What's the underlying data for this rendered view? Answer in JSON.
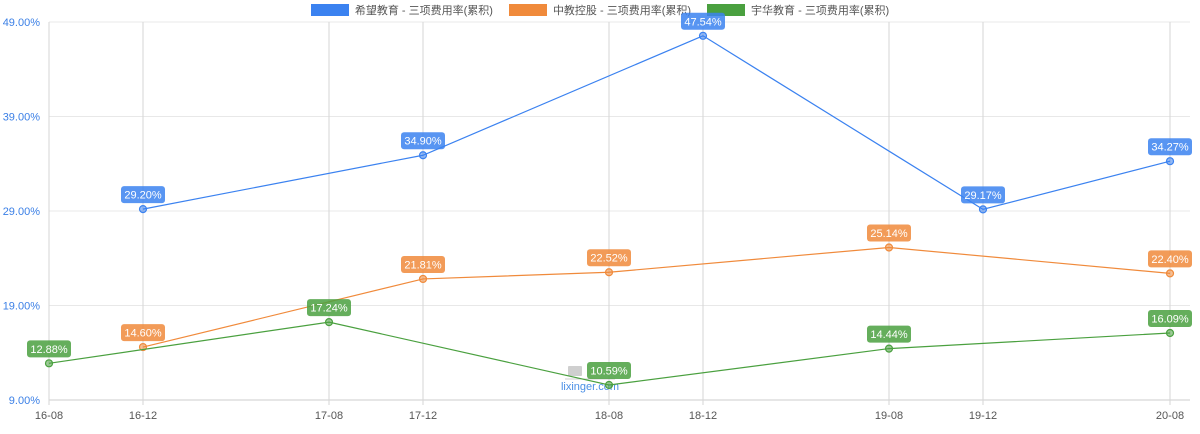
{
  "legend": [
    {
      "label": "希望教育 - 三项费用率(累积)",
      "color": "#3b82f0"
    },
    {
      "label": "中教控股 - 三项费用率(累积)",
      "color": "#f08a3b"
    },
    {
      "label": "宇华教育 - 三项费用率(累积)",
      "color": "#4aa03f"
    }
  ],
  "watermark": "lixinger.com",
  "chart_data": {
    "type": "line",
    "title": "",
    "xlabel": "",
    "ylabel": "",
    "categories": [
      "16-08",
      "16-12",
      "17-08",
      "17-12",
      "18-08",
      "18-12",
      "19-08",
      "19-12",
      "20-08"
    ],
    "yticks": [
      "49.00%",
      "39.00%",
      "29.00%",
      "19.00%",
      "9.00%"
    ],
    "ylim": [
      9,
      49
    ],
    "grid": true,
    "legend_position": "top",
    "series": [
      {
        "name": "希望教育 - 三项费用率(累积)",
        "color": "#3b82f0",
        "points": [
          {
            "x": "16-12",
            "y": 29.2,
            "label": "29.20%"
          },
          {
            "x": "17-12",
            "y": 34.9,
            "label": "34.90%"
          },
          {
            "x": "18-12",
            "y": 47.54,
            "label": "47.54%"
          },
          {
            "x": "19-12",
            "y": 29.17,
            "label": "29.17%"
          },
          {
            "x": "20-08",
            "y": 34.27,
            "label": "34.27%"
          }
        ]
      },
      {
        "name": "中教控股 - 三项费用率(累积)",
        "color": "#f08a3b",
        "points": [
          {
            "x": "16-12",
            "y": 14.6,
            "label": "14.60%"
          },
          {
            "x": "17-12",
            "y": 21.81,
            "label": "21.81%"
          },
          {
            "x": "18-08",
            "y": 22.52,
            "label": "22.52%"
          },
          {
            "x": "19-08",
            "y": 25.14,
            "label": "25.14%"
          },
          {
            "x": "20-08",
            "y": 22.4,
            "label": "22.40%"
          }
        ]
      },
      {
        "name": "宇华教育 - 三项费用率(累积)",
        "color": "#4aa03f",
        "points": [
          {
            "x": "16-08",
            "y": 12.88,
            "label": "12.88%"
          },
          {
            "x": "17-08",
            "y": 17.24,
            "label": "17.24%"
          },
          {
            "x": "18-08",
            "y": 10.59,
            "label": "10.59%"
          },
          {
            "x": "19-08",
            "y": 14.44,
            "label": "14.44%"
          },
          {
            "x": "20-08",
            "y": 16.09,
            "label": "16.09%"
          }
        ]
      }
    ]
  }
}
